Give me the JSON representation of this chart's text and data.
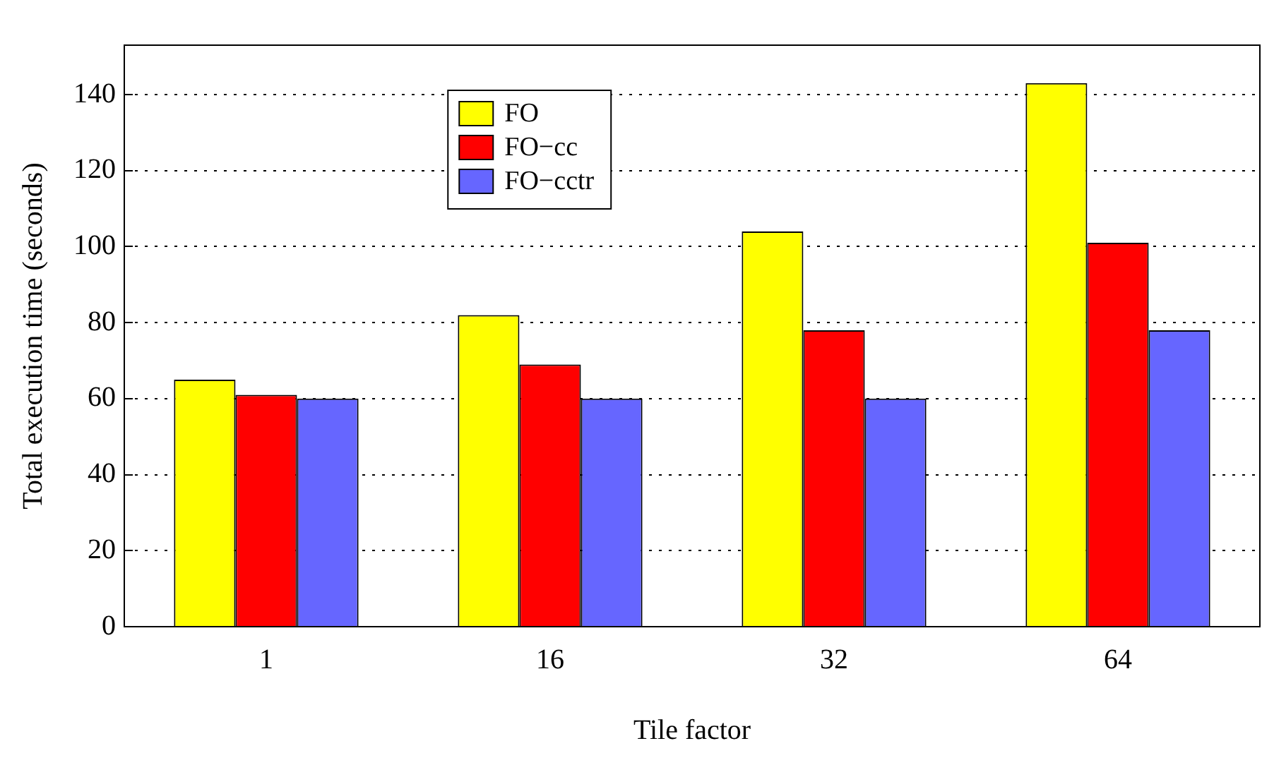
{
  "chart_data": {
    "type": "bar",
    "xlabel": "Tile factor",
    "ylabel": "Total execution time (seconds)",
    "categories": [
      "1",
      "16",
      "32",
      "64"
    ],
    "series": [
      {
        "name": "FO",
        "color": "#ffff00",
        "values": [
          65,
          82,
          104,
          143
        ]
      },
      {
        "name": "FO−cc",
        "color": "#ff0000",
        "values": [
          61,
          69,
          78,
          101
        ]
      },
      {
        "name": "FO−cctr",
        "color": "#6666ff",
        "values": [
          60,
          60,
          60,
          78
        ]
      }
    ],
    "ylim": [
      0,
      153
    ],
    "yticks": [
      0,
      20,
      40,
      60,
      80,
      100,
      120,
      140
    ],
    "grid": "y",
    "legend": "top left"
  }
}
